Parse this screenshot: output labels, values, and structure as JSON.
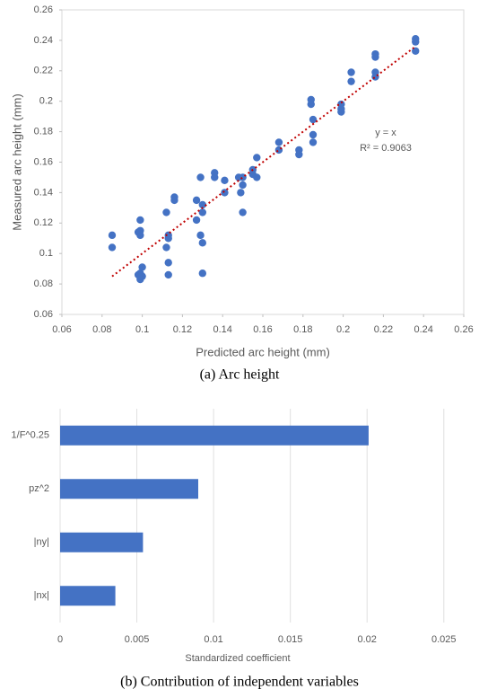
{
  "chart_data": [
    {
      "type": "scatter",
      "x_label": "Predicted arc height (mm)",
      "y_label": "Measured arc height (mm)",
      "caption": "(a)  Arc height",
      "xlim": [
        0.06,
        0.26
      ],
      "xticks": [
        0.06,
        0.08,
        0.1,
        0.12,
        0.14,
        0.16,
        0.18,
        0.2,
        0.22,
        0.24,
        0.26
      ],
      "ylim": [
        0.06,
        0.26
      ],
      "yticks": [
        0.06,
        0.08,
        0.1,
        0.12,
        0.14,
        0.16,
        0.18,
        0.2,
        0.22,
        0.24,
        0.26
      ],
      "color": "#4472c4",
      "x": [
        0.085,
        0.085,
        0.099,
        0.099,
        0.098,
        0.099,
        0.1,
        0.099,
        0.1,
        0.099,
        0.098,
        0.112,
        0.112,
        0.113,
        0.113,
        0.113,
        0.113,
        0.116,
        0.116,
        0.127,
        0.127,
        0.129,
        0.129,
        0.13,
        0.13,
        0.13,
        0.13,
        0.136,
        0.136,
        0.141,
        0.141,
        0.148,
        0.149,
        0.15,
        0.15,
        0.15,
        0.155,
        0.155,
        0.157,
        0.157,
        0.168,
        0.168,
        0.178,
        0.178,
        0.184,
        0.184,
        0.185,
        0.185,
        0.185,
        0.199,
        0.199,
        0.199,
        0.204,
        0.204,
        0.216,
        0.216,
        0.216,
        0.216,
        0.236,
        0.236,
        0.236
      ],
      "values": [
        0.112,
        0.104,
        0.122,
        0.115,
        0.114,
        0.112,
        0.091,
        0.087,
        0.085,
        0.083,
        0.086,
        0.127,
        0.104,
        0.112,
        0.11,
        0.094,
        0.086,
        0.137,
        0.135,
        0.135,
        0.122,
        0.15,
        0.112,
        0.132,
        0.127,
        0.107,
        0.087,
        0.153,
        0.15,
        0.148,
        0.14,
        0.15,
        0.14,
        0.145,
        0.127,
        0.15,
        0.155,
        0.152,
        0.163,
        0.15,
        0.173,
        0.168,
        0.168,
        0.165,
        0.201,
        0.198,
        0.188,
        0.178,
        0.173,
        0.198,
        0.195,
        0.193,
        0.219,
        0.213,
        0.231,
        0.229,
        0.219,
        0.216,
        0.241,
        0.239,
        0.233
      ],
      "trendline": {
        "x": [
          0.085,
          0.236
        ],
        "y": [
          0.085,
          0.236
        ],
        "color": "#c00000"
      },
      "annotations": [
        "y = x",
        "R² = 0.9063"
      ]
    },
    {
      "type": "bar",
      "orientation": "horizontal",
      "x_label": "Standardized coefficient",
      "caption": "(b)  Contribution of independent variables",
      "categories": [
        "1/F^0.25",
        "pz^2",
        "|ny|",
        "|nx|"
      ],
      "values": [
        0.0201,
        0.009,
        0.0054,
        0.0036
      ],
      "color": "#4472c4",
      "xlim": [
        0,
        0.027
      ],
      "xticks": [
        0,
        0.005,
        0.01,
        0.015,
        0.02,
        0.025
      ],
      "grid": true
    }
  ]
}
